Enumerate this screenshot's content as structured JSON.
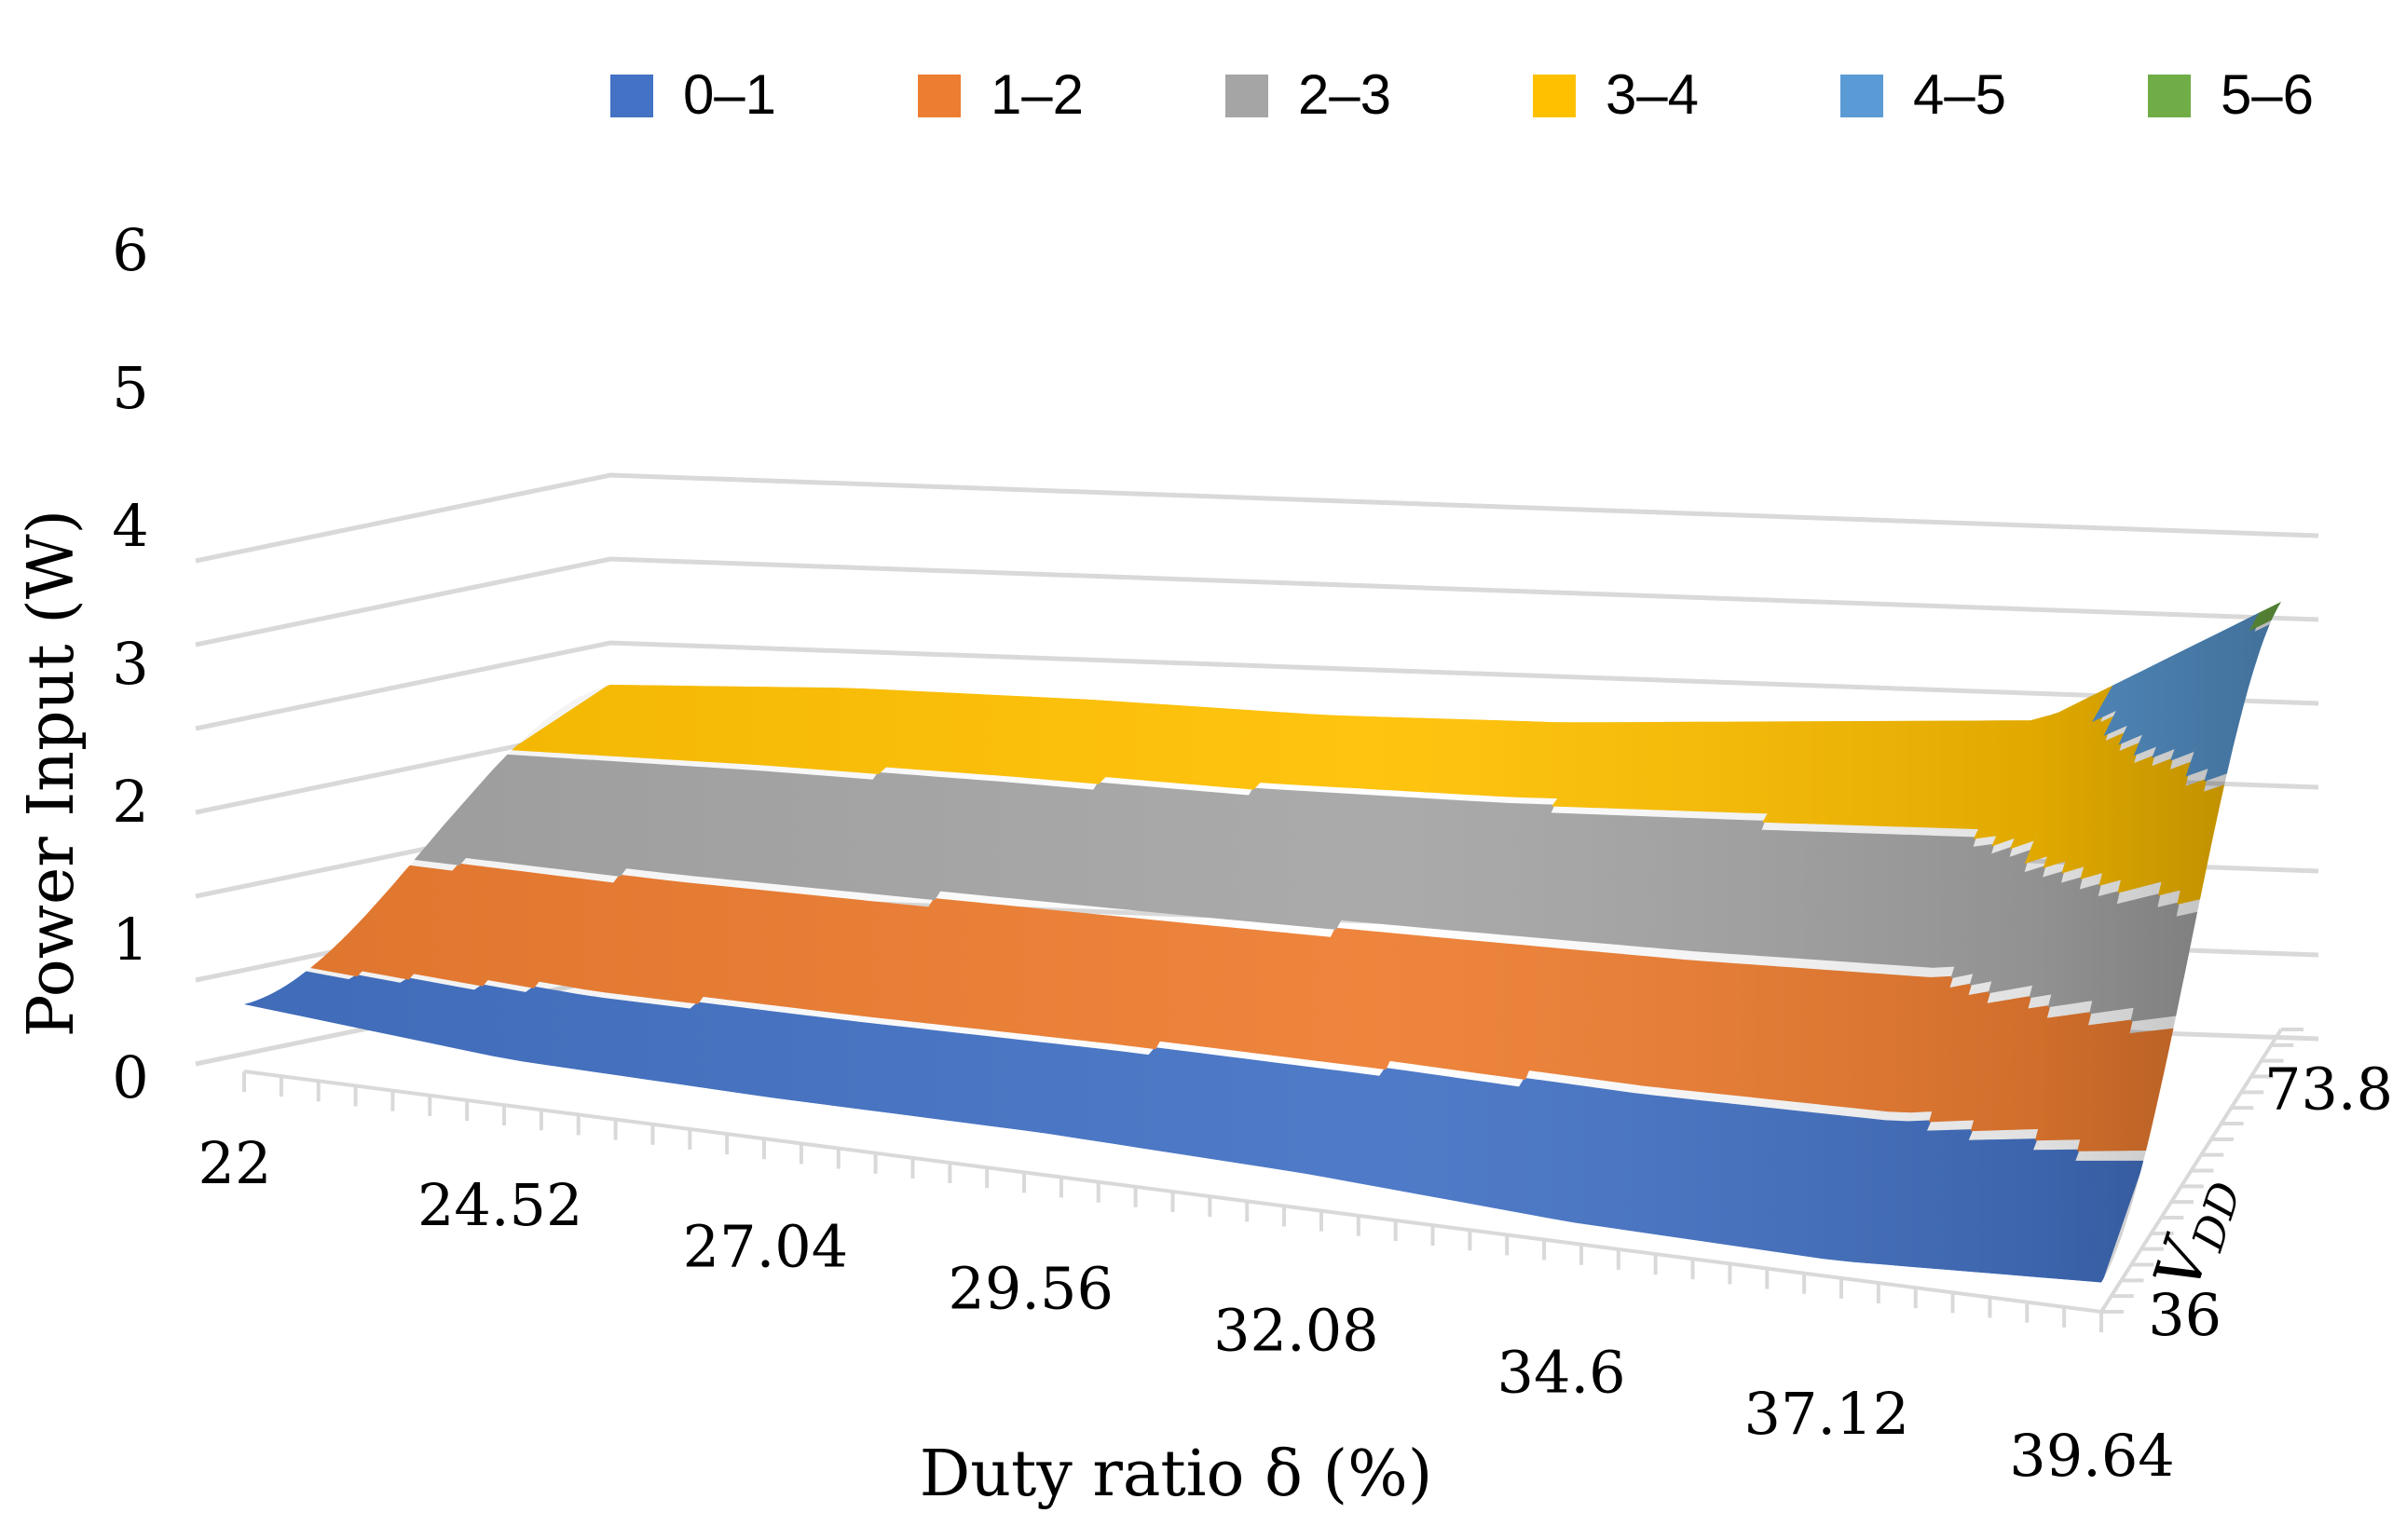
{
  "chart_data": {
    "type": "surface",
    "title": "",
    "xlabel": "Duty ratio δ (%)",
    "ylabel": "Power Input (W)",
    "depth_axis_label_main": "V",
    "depth_axis_label_sub": "DD",
    "x_ticks": [
      "22",
      "24.52",
      "27.04",
      "29.56",
      "32.08",
      "34.6",
      "37.12",
      "39.64"
    ],
    "depth_ticks": [
      "36",
      "73.8"
    ],
    "z_ticks": [
      "0",
      "1",
      "2",
      "3",
      "4",
      "5",
      "6"
    ],
    "zlim": [
      0,
      6
    ],
    "legend": [
      {
        "label": "0–1",
        "color": "#4472C4"
      },
      {
        "label": "1–2",
        "color": "#ED7D31"
      },
      {
        "label": "2–3",
        "color": "#A5A5A5"
      },
      {
        "label": "3–4",
        "color": "#FFC000"
      },
      {
        "label": "4–5",
        "color": "#5B9BD5"
      },
      {
        "label": "5–6",
        "color": "#70AD47"
      }
    ],
    "series": [
      {
        "name": "V_DD = 36",
        "x": [
          22,
          24.52,
          27.04,
          29.56,
          32.08,
          34.6,
          37.12,
          39.64
        ],
        "values": [
          0.8,
          0.55,
          0.5,
          0.5,
          0.42,
          0.25,
          0.2,
          0.35
        ]
      },
      {
        "name": "V_DD = 73.8",
        "x": [
          22,
          24.52,
          27.04,
          29.56,
          32.08,
          34.6,
          37.12,
          39.64
        ],
        "values": [
          3.5,
          3.55,
          3.5,
          3.4,
          3.4,
          3.5,
          3.6,
          5.1
        ]
      }
    ]
  }
}
